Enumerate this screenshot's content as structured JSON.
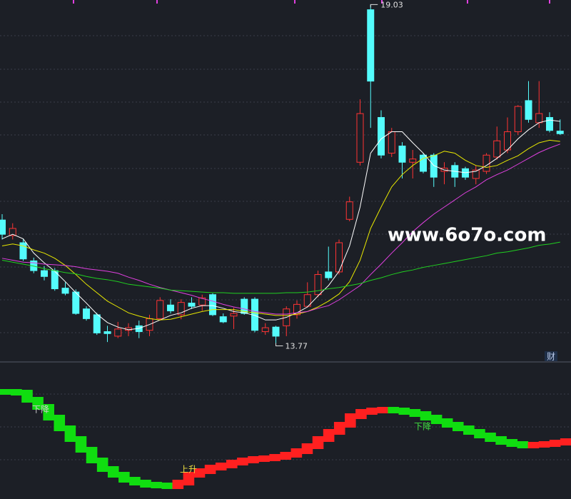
{
  "chart_data": [
    {
      "type": "candlestick",
      "open": [
        15.71,
        15.47,
        15.36,
        15.08,
        14.93,
        14.93,
        14.66,
        14.6,
        14.34,
        14.25,
        13.99,
        13.92,
        14.01,
        14.08,
        14.01,
        14.19,
        14.4,
        14.25,
        14.43,
        14.4,
        14.56,
        14.22,
        14.23,
        14.49,
        14.49,
        13.99,
        14.06,
        14.08,
        14.25,
        14.38,
        14.56,
        14.91,
        14.91,
        15.72,
        16.6,
        18.95,
        17.29,
        16.74,
        16.85,
        16.6,
        16.71,
        16.71,
        16.46,
        16.55,
        16.5,
        16.35,
        16.46,
        16.68,
        16.79,
        17.07,
        17.55,
        17.21,
        17.29,
        17.08
      ],
      "high": [
        15.8,
        15.66,
        15.41,
        15.13,
        15.0,
        14.97,
        14.75,
        14.64,
        14.38,
        14.28,
        14.08,
        14.14,
        14.12,
        14.16,
        14.25,
        14.52,
        14.49,
        14.49,
        14.52,
        14.56,
        14.58,
        14.27,
        14.36,
        14.52,
        14.52,
        14.12,
        14.08,
        14.38,
        14.47,
        14.75,
        14.93,
        15.3,
        15.41,
        16.07,
        17.57,
        19.03,
        17.4,
        17.13,
        16.91,
        16.79,
        16.74,
        16.74,
        16.6,
        16.6,
        16.53,
        16.55,
        16.74,
        17.15,
        17.29,
        17.48,
        17.85,
        17.85,
        17.37,
        17.26
      ],
      "low": [
        15.41,
        15.41,
        15.08,
        14.89,
        14.78,
        14.62,
        14.55,
        14.25,
        14.16,
        13.94,
        13.83,
        13.89,
        13.92,
        13.89,
        13.92,
        14.16,
        14.27,
        14.18,
        14.34,
        14.31,
        14.23,
        14.12,
        14.03,
        14.25,
        13.98,
        13.94,
        13.77,
        13.92,
        14.19,
        14.36,
        14.52,
        14.78,
        14.87,
        15.69,
        16.55,
        17.13,
        16.66,
        16.68,
        16.35,
        16.35,
        16.43,
        16.22,
        16.26,
        16.22,
        16.33,
        16.26,
        16.42,
        16.64,
        16.74,
        17.02,
        17.21,
        17.13,
        17.06,
        17.02
      ],
      "close": [
        15.49,
        15.58,
        15.11,
        14.93,
        14.84,
        14.65,
        14.58,
        14.27,
        14.19,
        13.97,
        13.96,
        14.03,
        14.05,
        13.99,
        14.19,
        14.47,
        14.31,
        14.44,
        14.38,
        14.51,
        14.25,
        14.14,
        14.27,
        14.27,
        14.01,
        14.05,
        13.92,
        14.34,
        14.41,
        14.56,
        14.87,
        14.82,
        15.36,
        15.99,
        17.35,
        17.85,
        16.71,
        17.07,
        16.6,
        16.65,
        16.46,
        16.37,
        16.51,
        16.37,
        16.37,
        16.48,
        16.71,
        16.93,
        17.07,
        17.46,
        17.26,
        17.35,
        17.09,
        17.04
      ],
      "up_color": "#ff3333",
      "down_color": "#54fcfc",
      "series": [
        {
          "color": "#ffffff",
          "values": [
            15.42,
            15.49,
            15.42,
            15.2,
            15.05,
            14.92,
            14.76,
            14.59,
            14.43,
            14.26,
            14.13,
            14.06,
            14.02,
            14.04,
            14.1,
            14.17,
            14.24,
            14.28,
            14.35,
            14.39,
            14.39,
            14.35,
            14.3,
            14.28,
            14.24,
            14.17,
            14.17,
            14.21,
            14.28,
            14.37,
            14.54,
            14.7,
            14.92,
            15.31,
            15.91,
            16.74,
            16.96,
            17.07,
            17.07,
            16.9,
            16.74,
            16.55,
            16.48,
            16.46,
            16.44,
            16.46,
            16.55,
            16.66,
            16.79,
            16.96,
            17.1,
            17.21,
            17.25,
            17.23
          ]
        },
        {
          "color": "#e8e800",
          "values": [
            15.31,
            15.34,
            15.31,
            15.25,
            15.2,
            15.12,
            15.01,
            14.87,
            14.72,
            14.59,
            14.46,
            14.37,
            14.28,
            14.23,
            14.19,
            14.17,
            14.18,
            14.22,
            14.26,
            14.3,
            14.33,
            14.33,
            14.33,
            14.3,
            14.28,
            14.26,
            14.24,
            14.24,
            14.26,
            14.3,
            14.37,
            14.46,
            14.57,
            14.76,
            15.09,
            15.58,
            15.91,
            16.22,
            16.41,
            16.55,
            16.66,
            16.7,
            16.77,
            16.74,
            16.63,
            16.55,
            16.52,
            16.55,
            16.63,
            16.7,
            16.81,
            16.9,
            16.94,
            16.92
          ]
        },
        {
          "color": "#e040e0",
          "values": [
            15.12,
            15.09,
            15.06,
            15.05,
            15.03,
            15.02,
            15.01,
            14.99,
            14.96,
            14.94,
            14.92,
            14.89,
            14.83,
            14.78,
            14.72,
            14.67,
            14.63,
            14.59,
            14.55,
            14.5,
            14.46,
            14.41,
            14.37,
            14.34,
            14.3,
            14.28,
            14.26,
            14.26,
            14.28,
            14.3,
            14.35,
            14.39,
            14.48,
            14.59,
            14.7,
            14.87,
            15.03,
            15.2,
            15.36,
            15.53,
            15.67,
            15.8,
            15.91,
            16.02,
            16.13,
            16.22,
            16.33,
            16.41,
            16.48,
            16.57,
            16.66,
            16.75,
            16.82,
            16.88
          ]
        },
        {
          "color": "#20d020",
          "values": [
            15.09,
            15.06,
            15.03,
            15.0,
            14.96,
            14.93,
            14.9,
            14.88,
            14.84,
            14.81,
            14.79,
            14.76,
            14.72,
            14.7,
            14.68,
            14.66,
            14.63,
            14.62,
            14.61,
            14.6,
            14.59,
            14.59,
            14.58,
            14.58,
            14.58,
            14.58,
            14.58,
            14.59,
            14.59,
            14.6,
            14.62,
            14.65,
            14.67,
            14.7,
            14.73,
            14.78,
            14.82,
            14.87,
            14.91,
            14.94,
            14.98,
            15.01,
            15.04,
            15.07,
            15.1,
            15.13,
            15.16,
            15.2,
            15.22,
            15.25,
            15.28,
            15.32,
            15.34,
            15.37
          ]
        }
      ],
      "ylim": [
        13.6,
        19.1
      ],
      "high_label": "19.03",
      "low_label": "13.77",
      "watermark": "www.6o7o.com",
      "corner_label": "财"
    },
    {
      "type": "ribbon",
      "values": [
        150,
        149,
        139,
        129,
        114,
        99,
        84,
        69,
        54,
        42,
        34,
        27,
        23,
        20,
        19,
        18,
        23,
        34,
        39,
        44,
        47,
        51,
        54,
        56,
        57,
        59,
        62,
        67,
        74,
        84,
        94,
        104,
        116,
        122,
        124,
        125,
        124,
        122,
        119,
        114,
        109,
        104,
        99,
        94,
        89,
        84,
        80,
        77,
        75,
        76,
        77,
        79,
        81
      ],
      "rise_color": "#ff2020",
      "fall_color": "#10dd10",
      "ylim": [
        0,
        190
      ],
      "annotations": [
        {
          "text": "下降",
          "color": "#cfcfcf"
        },
        {
          "text": "上升",
          "color": "#f0e040"
        },
        {
          "text": "下降",
          "color": "#40e040"
        }
      ]
    }
  ]
}
